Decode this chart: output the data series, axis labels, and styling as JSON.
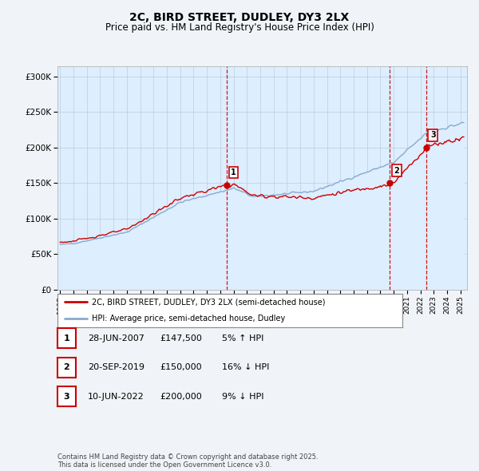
{
  "title": "2C, BIRD STREET, DUDLEY, DY3 2LX",
  "subtitle": "Price paid vs. HM Land Registry's House Price Index (HPI)",
  "ylabel_ticks": [
    "£0",
    "£50K",
    "£100K",
    "£150K",
    "£200K",
    "£250K",
    "£300K"
  ],
  "ytick_values": [
    0,
    50000,
    100000,
    150000,
    200000,
    250000,
    300000
  ],
  "ylim": [
    0,
    315000
  ],
  "xlim_start": 1994.8,
  "xlim_end": 2025.5,
  "vlines": [
    2007.49,
    2019.72,
    2022.44
  ],
  "sale_color": "#cc0000",
  "hpi_color": "#88aacc",
  "hpi_fill_color": "#ddeeff",
  "legend_entries": [
    "2C, BIRD STREET, DUDLEY, DY3 2LX (semi-detached house)",
    "HPI: Average price, semi-detached house, Dudley"
  ],
  "table_entries": [
    {
      "num": "1",
      "date": "28-JUN-2007",
      "price": "£147,500",
      "pct": "5% ↑ HPI"
    },
    {
      "num": "2",
      "date": "20-SEP-2019",
      "price": "£150,000",
      "pct": "16% ↓ HPI"
    },
    {
      "num": "3",
      "date": "10-JUN-2022",
      "price": "£200,000",
      "pct": "9% ↓ HPI"
    }
  ],
  "footnote": "Contains HM Land Registry data © Crown copyright and database right 2025.\nThis data is licensed under the Open Government Licence v3.0.",
  "background_color": "#f0f4f8",
  "plot_bg_color": "#ddeeff",
  "grid_color": "#bbccdd"
}
